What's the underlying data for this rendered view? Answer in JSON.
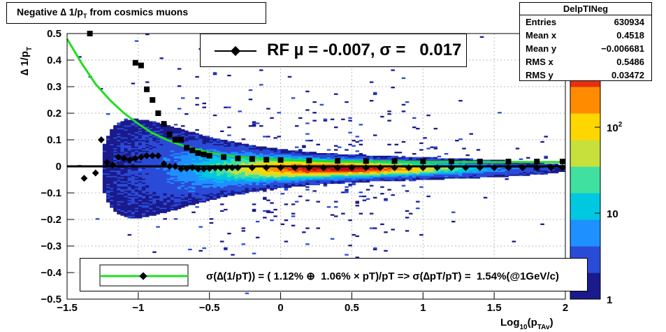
{
  "title": {
    "prefix": "Negative ∆ 1/p",
    "sub": "T",
    "suffix": " from cosmics muons"
  },
  "stats": {
    "name": "DelpTINeg",
    "rows": [
      {
        "label": "Entries",
        "value": "630934"
      },
      {
        "label": "Mean x",
        "value": "0.4518"
      },
      {
        "label": "Mean y",
        "value": "−0.006681"
      },
      {
        "label": "RMS x",
        "value": "0.5486"
      },
      {
        "label": "RMS y",
        "value": "0.03472"
      }
    ]
  },
  "rf_legend": "RF µ = -0.007, σ =   0.017",
  "sigma_legend": "σ(∆(1/pT)) = ( 1.12% ⊕  1.06% × pT)/pT => σ(∆pT/pT) =  1.54%(@1GeV/c)",
  "colors": {
    "fit_curve": "#22dd22",
    "markers": "#000000",
    "palette": [
      "#1a1a8c",
      "#2a4bd7",
      "#1e90ff",
      "#00c8e0",
      "#40e0a0",
      "#c8e03c",
      "#ffd700",
      "#ff8c00",
      "#e83010",
      "#b01010"
    ]
  },
  "chart_data": {
    "type": "heatmap",
    "xlabel": "Log10(pTAv)",
    "ylabel": "∆ 1/pT",
    "xlim": [
      -1.5,
      2
    ],
    "ylim": [
      -0.5,
      0.5
    ],
    "x_ticks": [
      "−1.5",
      "−1",
      "−0.5",
      "0",
      "0.5",
      "1",
      "1.5",
      "2"
    ],
    "y_ticks": [
      "−0.5",
      "−0.4",
      "−0.3",
      "−0.2",
      "−0.1",
      "0",
      "0.1",
      "0.2",
      "0.3",
      "0.4",
      "0.5"
    ],
    "z_scale": "log",
    "z_ticks": [
      "1",
      "10",
      "10^2"
    ],
    "grid": true,
    "series": [
      {
        "name": "mean",
        "x": [
          -1.38,
          -1.3,
          -1.26,
          -1.22,
          -1.18,
          -1.14,
          -1.1,
          -1.06,
          -1.02,
          -0.98,
          -0.94,
          -0.9,
          -0.86,
          -0.82,
          -0.78,
          -0.74,
          -0.7,
          -0.66,
          -0.62,
          -0.58,
          -0.54,
          -0.5,
          -0.46,
          -0.42,
          -0.38,
          -0.34,
          -0.3,
          -0.2,
          -0.1,
          0,
          0.1,
          0.2,
          0.3,
          0.4,
          0.5,
          0.6,
          0.7,
          0.8,
          0.9,
          1.0,
          1.1,
          1.2,
          1.3,
          1.4,
          1.5,
          1.6,
          1.7,
          1.8,
          1.9,
          1.98
        ],
        "y": [
          -0.045,
          -0.025,
          0.1,
          0.015,
          0.005,
          0.035,
          0.03,
          0.025,
          0.03,
          0.035,
          0.04,
          0.04,
          0.04,
          0.01,
          0.0,
          0.0,
          -0.01,
          -0.008,
          -0.005,
          -0.01,
          -0.01,
          -0.008,
          -0.006,
          -0.006,
          -0.005,
          -0.005,
          -0.005,
          -0.005,
          -0.005,
          -0.005,
          -0.005,
          -0.005,
          -0.005,
          -0.005,
          -0.005,
          -0.005,
          -0.005,
          -0.005,
          -0.005,
          -0.005,
          -0.005,
          -0.005,
          -0.005,
          -0.005,
          -0.005,
          -0.005,
          -0.005,
          -0.005,
          -0.005,
          -0.005
        ]
      },
      {
        "name": "sigma",
        "x": [
          -1.34,
          -1.02,
          -0.98,
          -0.94,
          -0.9,
          -0.86,
          -0.82,
          -0.78,
          -0.74,
          -0.7,
          -0.66,
          -0.62,
          -0.58,
          -0.54,
          -0.5,
          -0.4,
          -0.3,
          -0.2,
          -0.1,
          0,
          0.2,
          0.4,
          0.6,
          0.8,
          1.0,
          1.2,
          1.4,
          1.6,
          1.8,
          1.98
        ],
        "y": [
          0.5,
          0.39,
          0.38,
          0.29,
          0.25,
          0.2,
          0.16,
          0.12,
          0.1,
          0.1,
          0.07,
          0.06,
          0.05,
          0.045,
          0.04,
          0.035,
          0.03,
          0.028,
          0.025,
          0.024,
          0.022,
          0.021,
          0.02,
          0.02,
          0.019,
          0.019,
          0.018,
          0.018,
          0.018,
          0.018
        ]
      },
      {
        "name": "fit",
        "x": [
          -1.5,
          -1.4,
          -1.3,
          -1.2,
          -1.1,
          -1.0,
          -0.9,
          -0.8,
          -0.7,
          -0.6,
          -0.5,
          -0.4,
          -0.3,
          -0.2,
          -0.1,
          0,
          0.25,
          0.5,
          0.75,
          1.0,
          1.25,
          1.5,
          1.75,
          2.0
        ],
        "y": [
          0.48,
          0.39,
          0.31,
          0.25,
          0.2,
          0.16,
          0.125,
          0.1,
          0.08,
          0.065,
          0.052,
          0.043,
          0.036,
          0.031,
          0.027,
          0.024,
          0.02,
          0.018,
          0.017,
          0.0165,
          0.0162,
          0.016,
          0.016,
          0.016
        ]
      }
    ]
  }
}
